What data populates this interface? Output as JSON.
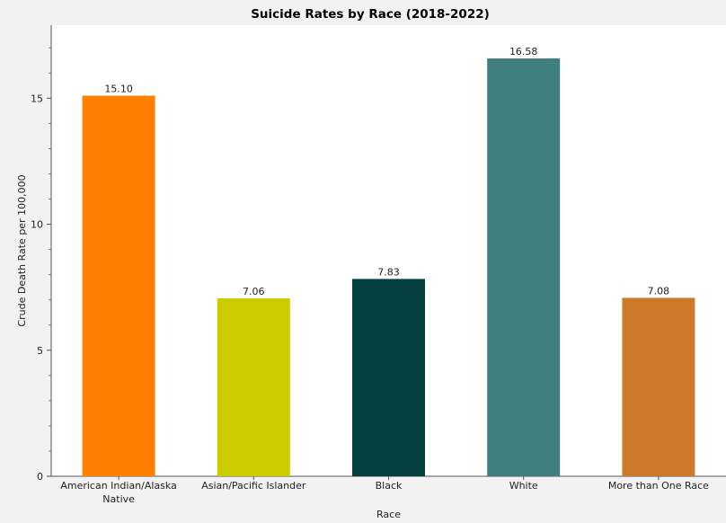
{
  "chart_data": {
    "type": "bar",
    "title": "Suicide Rates by Race (2018-2022)",
    "xlabel": "Race",
    "ylabel": "Crude Death Rate per 100,000",
    "categories": [
      [
        "American Indian/Alaska",
        "Native"
      ],
      [
        "Asian/Pacific Islander"
      ],
      [
        "Black"
      ],
      [
        "White"
      ],
      [
        "More than One Race"
      ]
    ],
    "values": [
      15.1,
      7.06,
      7.83,
      16.58,
      7.08
    ],
    "data_labels": [
      "15.10",
      "7.06",
      "7.83",
      "16.58",
      "7.08"
    ],
    "colors": [
      "#ff7f00",
      "#cccc00",
      "#033f3f",
      "#3f7f7f",
      "#cc7a29"
    ],
    "ylim": [
      0,
      17.9
    ],
    "yticks": [
      0,
      5,
      10,
      15
    ],
    "grid": false,
    "legend": "none"
  }
}
